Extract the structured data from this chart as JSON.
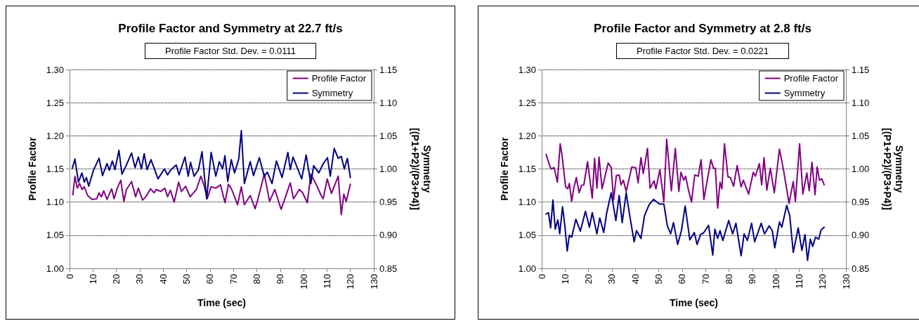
{
  "chart_data": [
    {
      "type": "line",
      "title": "Profile Factor and Symmetry at 22.7 ft/s",
      "annotations": [
        "Profile Factor Std. Dev. = 0.0111"
      ],
      "xlabel": "Time (sec)",
      "ylabel": "Profile Factor",
      "y2label": "Symmetry\n[(P1+P2)/(P3+P4)]",
      "xlim": [
        0,
        130
      ],
      "xticks": [
        0,
        10,
        20,
        30,
        40,
        50,
        60,
        70,
        80,
        90,
        100,
        110,
        120,
        130
      ],
      "ylim": [
        1.0,
        1.3
      ],
      "yticks": [
        {
          "value": 1.0,
          "label": "1.00"
        },
        {
          "value": 1.05,
          "label": "1.05"
        },
        {
          "value": 1.1,
          "label": "1.10"
        },
        {
          "value": 1.15,
          "label": "1.15"
        },
        {
          "value": 1.2,
          "label": "1.20"
        },
        {
          "value": 1.25,
          "label": "1.25"
        },
        {
          "value": 1.3,
          "label": "1.30"
        }
      ],
      "y2lim": [
        0.85,
        1.15
      ],
      "y2ticks": [
        {
          "value": 0.85,
          "label": "0.85"
        },
        {
          "value": 0.9,
          "label": "0.90"
        },
        {
          "value": 0.95,
          "label": "0.95"
        },
        {
          "value": 1.0,
          "label": "1.00"
        },
        {
          "value": 1.05,
          "label": "1.05"
        },
        {
          "value": 1.1,
          "label": "1.10"
        },
        {
          "value": 1.15,
          "label": "1.15"
        }
      ],
      "grid": "y",
      "legend": "top right",
      "marker": "none",
      "line_style": "solid",
      "series": [
        {
          "name": "Profile Factor",
          "color": "#800080",
          "x": [
            1.4,
            2.3,
            3.3,
            4.3,
            5.3,
            6.3,
            7.7,
            9.7,
            11.6,
            12.6,
            13.6,
            14.6,
            16.0,
            18.0,
            19.0,
            20.4,
            21.9,
            23.2,
            24.3,
            26.5,
            28.2,
            29.4,
            31.2,
            32.6,
            34.6,
            36.1,
            37.0,
            39.0,
            40.7,
            41.9,
            43.1,
            44.7,
            46.6,
            47.8,
            49.6,
            51.5,
            54.2,
            56.1,
            57.6,
            58.8,
            60.5,
            62.5,
            64.5,
            66.4,
            67.9,
            69.3,
            71.8,
            73.4,
            74.7,
            77.2,
            79.3,
            80.6,
            83.2,
            85.5,
            87.7,
            90.4,
            91.8,
            94.3,
            95.7,
            98.2,
            99.6,
            101.6,
            103.1,
            105.5,
            107.5,
            108.4,
            110.1,
            111.9,
            114.8,
            116.1,
            117.2,
            118.2,
            120.0
          ],
          "values": [
            1.111,
            1.139,
            1.121,
            1.128,
            1.119,
            1.123,
            1.11,
            1.104,
            1.105,
            1.114,
            1.108,
            1.117,
            1.104,
            1.12,
            1.105,
            1.121,
            1.133,
            1.101,
            1.119,
            1.131,
            1.108,
            1.121,
            1.103,
            1.108,
            1.12,
            1.114,
            1.119,
            1.116,
            1.121,
            1.108,
            1.118,
            1.1,
            1.13,
            1.116,
            1.124,
            1.108,
            1.119,
            1.139,
            1.124,
            1.105,
            1.123,
            1.121,
            1.126,
            1.099,
            1.127,
            1.119,
            1.096,
            1.123,
            1.096,
            1.11,
            1.09,
            1.106,
            1.142,
            1.101,
            1.119,
            1.089,
            1.103,
            1.129,
            1.105,
            1.119,
            1.114,
            1.099,
            1.142,
            1.126,
            1.11,
            1.105,
            1.135,
            1.113,
            1.139,
            1.081,
            1.112,
            1.101,
            1.127
          ]
        },
        {
          "name": "Symmetry",
          "color": "#000080",
          "axis": "y2",
          "x": [
            1.2,
            2.3,
            3.8,
            5.3,
            6.3,
            7.2,
            8.2,
            10.2,
            12.6,
            14.1,
            16.0,
            17.0,
            18.3,
            19.4,
            21.1,
            22.4,
            24.3,
            26.5,
            28.0,
            29.4,
            30.7,
            31.9,
            33.1,
            34.8,
            37.8,
            40.5,
            41.9,
            43.1,
            45.6,
            46.8,
            49.3,
            50.7,
            51.7,
            53.2,
            55.1,
            56.6,
            58.6,
            60.5,
            62.5,
            64.0,
            65.4,
            66.4,
            67.6,
            69.1,
            70.5,
            72.3,
            73.4,
            74.7,
            77.2,
            78.6,
            81.1,
            83.2,
            84.5,
            86.5,
            88.4,
            90.8,
            93.3,
            94.3,
            95.5,
            99.2,
            101.1,
            103.1,
            104.3,
            106.5,
            108.4,
            110.2,
            111.4,
            113.1,
            114.8,
            116.1,
            117.4,
            118.7,
            120.0
          ],
          "values": [
            1.001,
            1.015,
            0.98,
            0.994,
            0.98,
            0.987,
            0.974,
            0.998,
            1.016,
            0.99,
            1.008,
            0.998,
            1.012,
            0.999,
            1.028,
            0.992,
            1.006,
            1.024,
            1.002,
            1.018,
            1.0,
            1.023,
            0.999,
            1.014,
            0.985,
            1.0,
            0.991,
            0.998,
            1.006,
            0.991,
            1.018,
            0.989,
            1.01,
            0.989,
            0.999,
            1.026,
            0.955,
            1.025,
            0.989,
            1.011,
            1.0,
            1.02,
            0.981,
            1.014,
            0.994,
            1.015,
            1.058,
            0.978,
            1.011,
            0.99,
            1.017,
            0.989,
            0.995,
            0.978,
            1.012,
            0.987,
            1.025,
            0.999,
            1.018,
            0.985,
            1.021,
            0.978,
            1.005,
            0.994,
            1.008,
            1.017,
            0.989,
            1.031,
            1.016,
            1.019,
            1.0,
            1.016,
            0.987
          ]
        }
      ]
    },
    {
      "type": "line",
      "title": "Profile Factor and Symmetry at 2.8 ft/s",
      "annotations": [
        "Profile Factor Std. Dev. = 0.0221"
      ],
      "xlabel": "Time (sec)",
      "ylabel": "Profile Factor",
      "y2label": "Symmetry\n[(P1+P2)/(P3+P4)]",
      "xlim": [
        0,
        130
      ],
      "xticks": [
        0,
        10,
        20,
        30,
        40,
        50,
        60,
        70,
        80,
        90,
        100,
        110,
        120,
        130
      ],
      "ylim": [
        1.0,
        1.3
      ],
      "yticks": [
        {
          "value": 1.0,
          "label": "1.00"
        },
        {
          "value": 1.05,
          "label": "1.05"
        },
        {
          "value": 1.1,
          "label": "1.10"
        },
        {
          "value": 1.15,
          "label": "1.15"
        },
        {
          "value": 1.2,
          "label": "1.20"
        },
        {
          "value": 1.25,
          "label": "1.25"
        },
        {
          "value": 1.3,
          "label": "1.30"
        }
      ],
      "y2lim": [
        0.85,
        1.15
      ],
      "y2ticks": [
        {
          "value": 0.85,
          "label": "0.85"
        },
        {
          "value": 0.9,
          "label": "0.90"
        },
        {
          "value": 0.95,
          "label": "0.95"
        },
        {
          "value": 1.0,
          "label": "1.00"
        },
        {
          "value": 1.05,
          "label": "1.05"
        },
        {
          "value": 1.1,
          "label": "1.10"
        },
        {
          "value": 1.15,
          "label": "1.15"
        }
      ],
      "grid": "y",
      "legend": "top right",
      "marker": "none",
      "line_style": "solid",
      "series": [
        {
          "name": "Profile Factor",
          "color": "#800080",
          "x": [
            1.9,
            3.3,
            4.0,
            5.3,
            6.7,
            7.9,
            8.7,
            10.2,
            11.1,
            11.8,
            12.8,
            13.6,
            14.8,
            16.0,
            17.0,
            18.0,
            19.6,
            21.6,
            22.6,
            23.6,
            24.5,
            25.8,
            28.4,
            29.7,
            30.7,
            31.9,
            33.1,
            33.9,
            34.9,
            36.1,
            38.5,
            40.2,
            41.2,
            42.4,
            43.4,
            45.2,
            46.3,
            48.0,
            48.8,
            50.5,
            52.2,
            53.4,
            55.4,
            57.1,
            58.6,
            59.5,
            60.7,
            61.5,
            62.6,
            64.0,
            65.4,
            66.9,
            68.1,
            69.3,
            72.3,
            73.4,
            74.2,
            75.2,
            76.2,
            77.0,
            78.1,
            79.6,
            80.6,
            82.0,
            83.5,
            85.2,
            86.2,
            88.4,
            90.4,
            91.3,
            93.0,
            94.0,
            95.0,
            96.2,
            97.7,
            99.4,
            101.6,
            103.4,
            105.7,
            107.5,
            108.4,
            110.2,
            111.6,
            113.3,
            114.3,
            115.5,
            116.8,
            117.7,
            118.7,
            119.7,
            120.7
          ],
          "values": [
            1.172,
            1.156,
            1.15,
            1.152,
            1.13,
            1.188,
            1.17,
            1.123,
            1.12,
            1.128,
            1.101,
            1.119,
            1.137,
            1.114,
            1.125,
            1.126,
            1.161,
            1.106,
            1.166,
            1.121,
            1.168,
            1.12,
            1.159,
            1.152,
            1.103,
            1.14,
            1.141,
            1.126,
            1.133,
            1.116,
            1.153,
            1.152,
            1.129,
            1.167,
            1.143,
            1.181,
            1.121,
            1.132,
            1.12,
            1.149,
            1.1,
            1.195,
            1.117,
            1.181,
            1.116,
            1.145,
            1.133,
            1.139,
            1.12,
            1.1,
            1.141,
            1.139,
            1.164,
            1.104,
            1.164,
            1.151,
            1.151,
            1.091,
            1.13,
            1.12,
            1.188,
            1.138,
            1.137,
            1.124,
            1.155,
            1.123,
            1.133,
            1.112,
            1.145,
            1.139,
            1.158,
            1.126,
            1.167,
            1.118,
            1.151,
            1.114,
            1.18,
            1.147,
            1.098,
            1.131,
            1.101,
            1.188,
            1.112,
            1.144,
            1.117,
            1.16,
            1.111,
            1.153,
            1.133,
            1.135,
            1.126
          ]
        },
        {
          "name": "Symmetry",
          "color": "#000080",
          "axis": "y2",
          "x": [
            1.9,
            2.9,
            3.8,
            4.8,
            5.8,
            6.9,
            7.7,
            8.9,
            9.9,
            10.9,
            11.8,
            12.8,
            14.6,
            16.5,
            18.7,
            20.4,
            21.6,
            23.6,
            24.8,
            26.5,
            27.8,
            29.7,
            31.7,
            33.1,
            34.4,
            36.1,
            37.5,
            39.5,
            40.5,
            42.4,
            43.9,
            45.9,
            47.8,
            50.3,
            52.2,
            53.7,
            55.1,
            56.3,
            58.1,
            59.7,
            61.3,
            63.3,
            65.2,
            66.4,
            67.9,
            69.3,
            71.3,
            73.1,
            74.0,
            75.2,
            76.2,
            77.4,
            79.9,
            81.6,
            83.0,
            85.2,
            86.5,
            87.9,
            89.7,
            91.0,
            93.8,
            95.2,
            97.2,
            98.5,
            99.6,
            101.6,
            102.6,
            104.7,
            106.0,
            107.5,
            109.6,
            111.2,
            112.5,
            113.6,
            114.8,
            115.8,
            117.0,
            118.4,
            119.4,
            120.7
          ],
          "values": [
            0.932,
            0.934,
            0.911,
            0.953,
            0.909,
            0.923,
            0.902,
            0.943,
            0.914,
            0.876,
            0.9,
            0.897,
            0.924,
            0.906,
            0.936,
            0.912,
            0.934,
            0.902,
            0.926,
            0.904,
            0.934,
            0.964,
            0.922,
            0.96,
            0.919,
            0.964,
            0.932,
            0.89,
            0.907,
            0.895,
            0.929,
            0.946,
            0.954,
            0.947,
            0.947,
            0.914,
            0.902,
            0.919,
            0.886,
            0.907,
            0.944,
            0.893,
            0.904,
            0.886,
            0.901,
            0.904,
            0.915,
            0.87,
            0.909,
            0.895,
            0.907,
            0.892,
            0.922,
            0.902,
            0.918,
            0.869,
            0.902,
            0.892,
            0.918,
            0.89,
            0.918,
            0.902,
            0.914,
            0.907,
            0.881,
            0.92,
            0.912,
            0.945,
            0.929,
            0.874,
            0.911,
            0.877,
            0.901,
            0.862,
            0.894,
            0.883,
            0.897,
            0.894,
            0.908,
            0.912
          ]
        }
      ]
    }
  ]
}
